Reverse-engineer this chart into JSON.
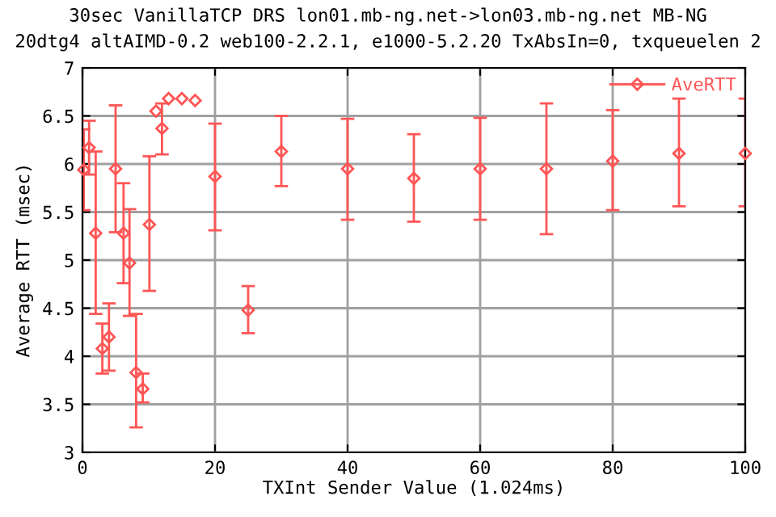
{
  "chart_data": {
    "type": "scatter",
    "title": "30sec VanillaTCP DRS lon01.mb-ng.net->lon03.mb-ng.net MB-NG",
    "subtitle": "20dtg4 altAIMD-0.2 web100-2.2.1, e1000-5.2.20 TxAbsIn=0, txqueuelen 2",
    "xlabel": "TXInt Sender Value (1.024ms)",
    "ylabel": "Average RTT (msec)",
    "xlim": [
      0,
      100
    ],
    "xticks": [
      0,
      20,
      40,
      60,
      80,
      100
    ],
    "ylim": [
      3,
      7
    ],
    "yticks": [
      3,
      3.5,
      4,
      4.5,
      5,
      5.5,
      6,
      6.5,
      7
    ],
    "grid": true,
    "legend": "top right",
    "marker": "diamond",
    "series": [
      {
        "name": "AveRTT",
        "color": "#ff5555",
        "x": [
          0.2,
          1,
          2,
          3,
          4,
          5,
          6.2,
          7.1,
          8.1,
          9.1,
          10.1,
          11.1,
          12,
          13,
          15,
          17,
          20,
          25,
          30,
          40,
          50,
          60,
          70,
          80,
          90,
          100
        ],
        "values": [
          5.94,
          6.17,
          5.28,
          4.08,
          4.2,
          5.95,
          5.28,
          4.97,
          3.83,
          3.66,
          5.37,
          6.55,
          6.37,
          6.68,
          6.68,
          6.66,
          5.87,
          4.48,
          6.13,
          5.95,
          5.85,
          5.95,
          5.95,
          6.03,
          6.11,
          6.11
        ],
        "errors": [
          [
            5.52,
            6.36
          ],
          [
            5.89,
            6.45
          ],
          [
            4.44,
            6.13
          ],
          [
            3.82,
            4.34
          ],
          [
            3.85,
            4.55
          ],
          [
            5.29,
            6.61
          ],
          [
            4.76,
            5.8
          ],
          [
            4.42,
            5.53
          ],
          [
            3.26,
            4.44
          ],
          [
            3.52,
            3.82
          ],
          [
            4.68,
            6.08
          ],
          null,
          [
            6.1,
            6.63
          ],
          null,
          null,
          null,
          [
            5.31,
            6.42
          ],
          [
            4.24,
            4.73
          ],
          [
            5.77,
            6.5
          ],
          [
            5.42,
            6.47
          ],
          [
            5.4,
            6.31
          ],
          [
            5.42,
            6.48
          ],
          [
            5.27,
            6.63
          ],
          [
            5.52,
            6.56
          ],
          [
            5.56,
            6.68
          ],
          [
            5.56,
            6.68
          ]
        ]
      }
    ]
  }
}
